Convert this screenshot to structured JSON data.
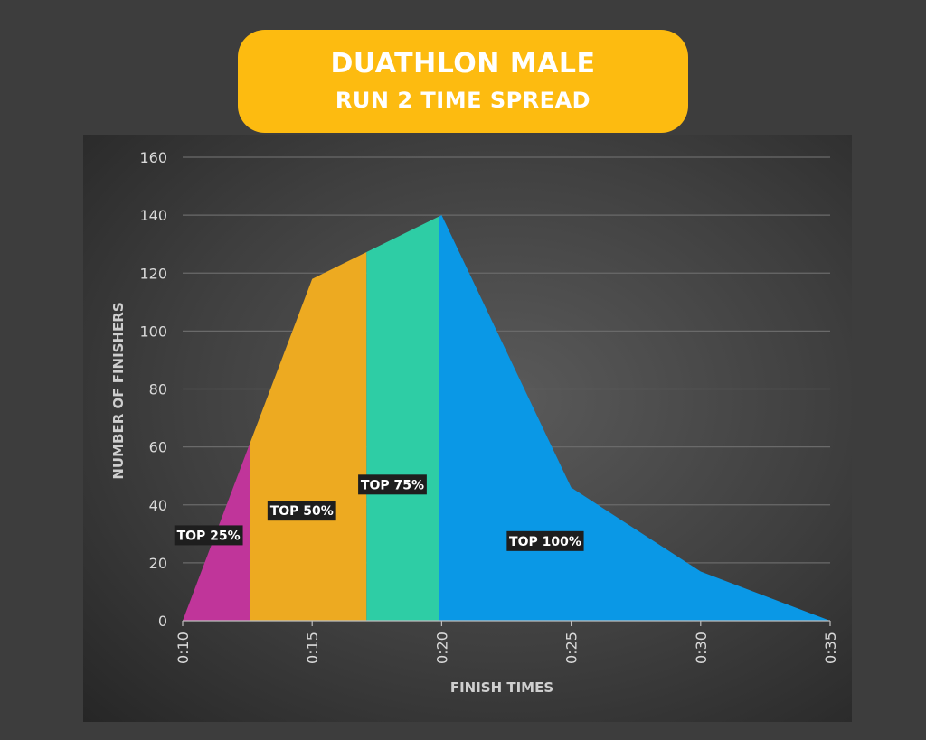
{
  "title": {
    "line1": "DUATHLON MALE",
    "line2": "RUN 2 TIME SPREAD"
  },
  "colors": {
    "title_bg": "#fdbb10",
    "top25": "#c0359a",
    "top50": "#edaa21",
    "top75": "#2ecda5",
    "top100": "#0a98e6",
    "label_bg": "#1e1e1e"
  },
  "chart_data": {
    "type": "area",
    "x": [
      "0:10",
      "0:15",
      "0:20",
      "0:25",
      "0:30",
      "0:35"
    ],
    "x_minutes": [
      10,
      15,
      20,
      25,
      30,
      35
    ],
    "y": [
      0,
      118,
      140,
      46,
      17,
      0
    ],
    "xlabel": "FINISH TIMES",
    "ylabel": "NUMBER OF FINISHERS",
    "ylim": [
      0,
      160
    ],
    "yticks": [
      0,
      20,
      40,
      60,
      80,
      100,
      120,
      140,
      160
    ],
    "grid": "horizontal",
    "bands": [
      {
        "label": "TOP 25%",
        "from_minutes": 10,
        "to_minutes": 12.6,
        "color": "#c0359a"
      },
      {
        "label": "TOP 50%",
        "from_minutes": 12.6,
        "to_minutes": 17.1,
        "color": "#edaa21"
      },
      {
        "label": "TOP 75%",
        "from_minutes": 17.1,
        "to_minutes": 19.9,
        "color": "#2ecda5"
      },
      {
        "label": "TOP 100%",
        "from_minutes": 19.9,
        "to_minutes": 35,
        "color": "#0a98e6"
      }
    ]
  }
}
